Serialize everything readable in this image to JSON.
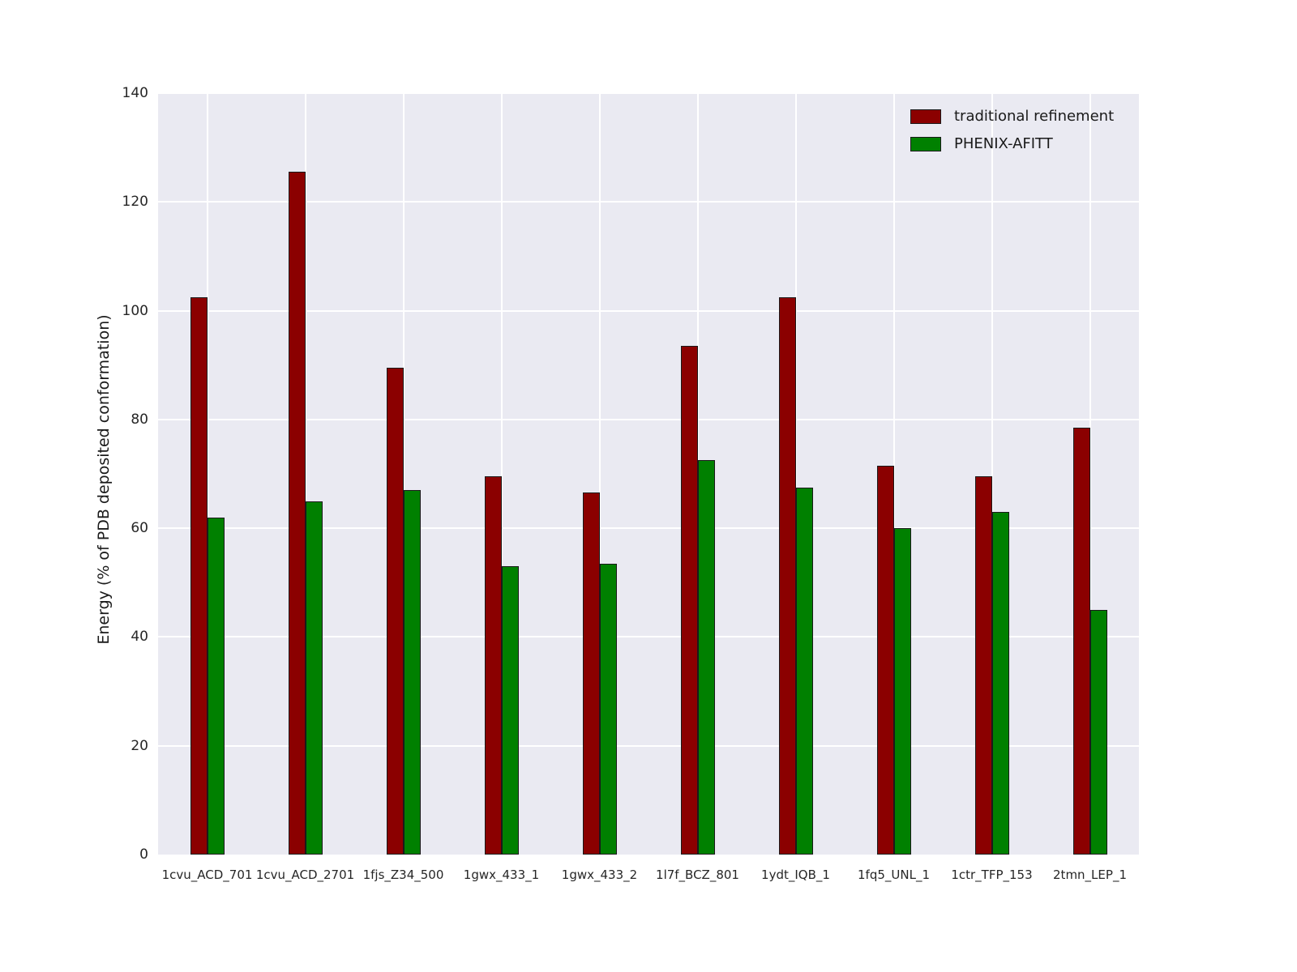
{
  "chart_data": {
    "type": "bar",
    "title": "",
    "xlabel": "",
    "ylabel": "Energy (% of PDB deposited conformation)",
    "categories": [
      "1cvu_ACD_701",
      "1cvu_ACD_2701",
      "1fjs_Z34_500",
      "1gwx_433_1",
      "1gwx_433_2",
      "1l7f_BCZ_801",
      "1ydt_IQB_1",
      "1fq5_UNL_1",
      "1ctr_TFP_153",
      "2tmn_LEP_1"
    ],
    "series": [
      {
        "name": "traditional refinement",
        "color": "#8B0000",
        "values": [
          102.5,
          125.5,
          89.5,
          69.5,
          66.5,
          93.5,
          102.5,
          71.5,
          69.5,
          78.5
        ]
      },
      {
        "name": "PHENIX-AFITT",
        "color": "#008000",
        "values": [
          62,
          65,
          67,
          53,
          53.5,
          72.5,
          67.5,
          60,
          63,
          45
        ]
      }
    ],
    "ylim": [
      0,
      140
    ],
    "ytick_step": 20,
    "yticks": [
      "0",
      "20",
      "40",
      "60",
      "80",
      "100",
      "120",
      "140"
    ],
    "grid": true,
    "legend_position": "upper right",
    "colors": {
      "figure_bg": "#ffffff",
      "plot_bg": "#eaeaf2",
      "grid_color": "#ffffff",
      "tick_color": "#262626",
      "bar_edge": "#1a1a1a"
    }
  }
}
